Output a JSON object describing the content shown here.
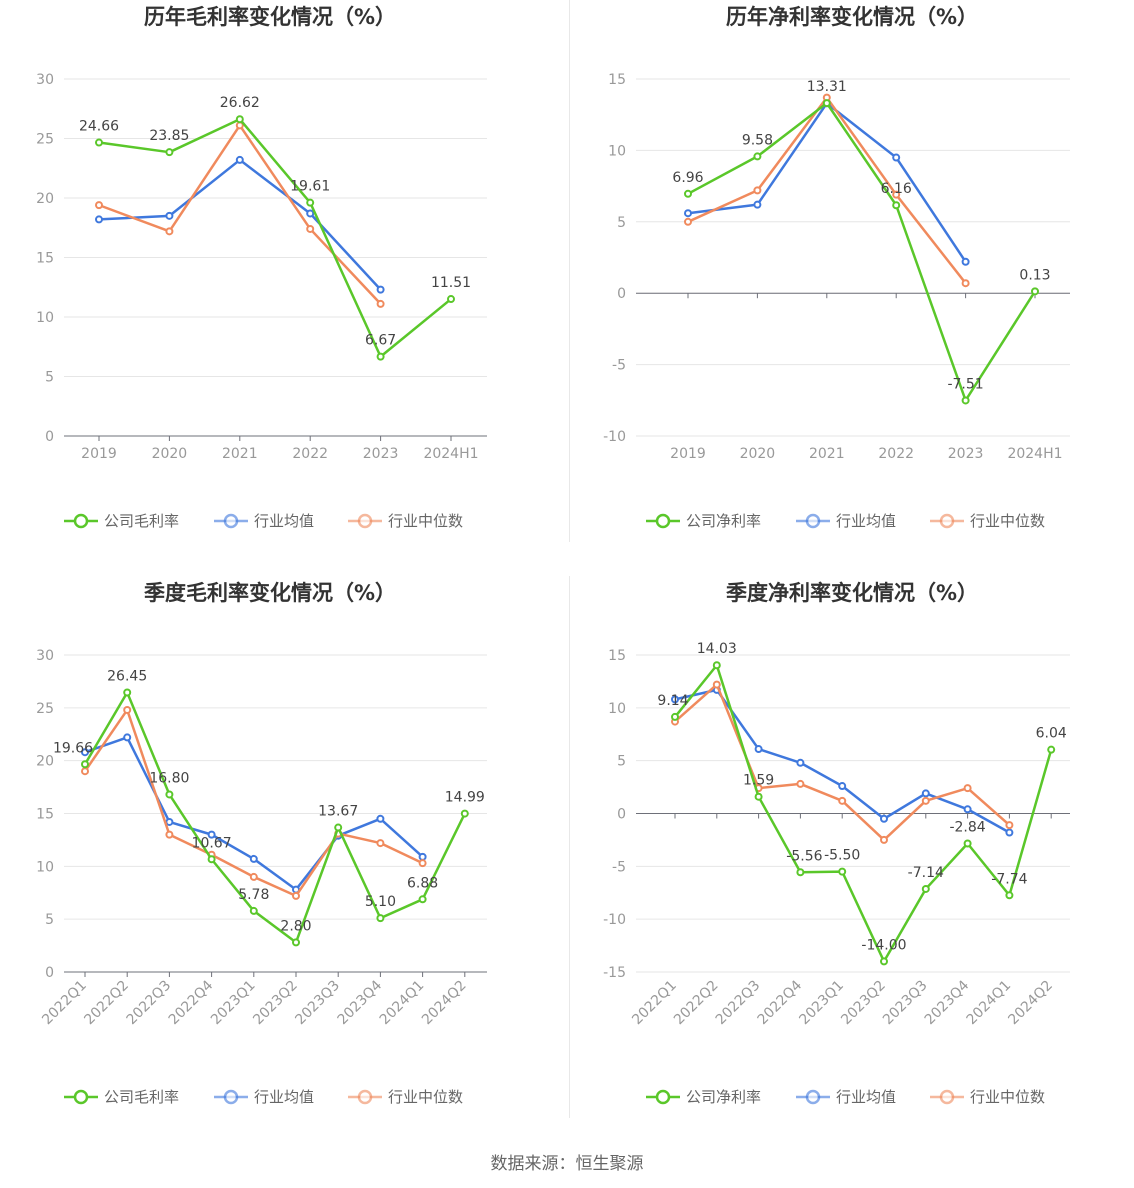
{
  "source": "数据来源：恒生聚源",
  "colors": {
    "company": "#5ac72a",
    "avg": "#3f78dd",
    "median": "#f08a5d"
  },
  "chart_data": [
    {
      "type": "line",
      "title": "历年毛利率变化情况（%）",
      "categories": [
        "2019",
        "2020",
        "2021",
        "2022",
        "2023",
        "2024H1"
      ],
      "ylim": [
        0,
        30
      ],
      "yticks": [
        0,
        5,
        10,
        15,
        20,
        25,
        30
      ],
      "grid": true,
      "legend_position": "bottom",
      "series": [
        {
          "name": "公司毛利率",
          "key": "company",
          "values": [
            24.66,
            23.85,
            26.62,
            19.61,
            6.67,
            11.51
          ],
          "labels": [
            "24.66",
            "23.85",
            "26.62",
            "19.61",
            "6.67",
            "11.51"
          ]
        },
        {
          "name": "行业均值",
          "key": "avg",
          "values": [
            18.2,
            18.5,
            23.2,
            18.7,
            12.3,
            null
          ]
        },
        {
          "name": "行业中位数",
          "key": "median",
          "values": [
            19.4,
            17.2,
            26.1,
            17.4,
            11.1,
            null
          ]
        }
      ]
    },
    {
      "type": "line",
      "title": "历年净利率变化情况（%）",
      "categories": [
        "2019",
        "2020",
        "2021",
        "2022",
        "2023",
        "2024H1"
      ],
      "ylim": [
        -10,
        15
      ],
      "yticks": [
        -10,
        -5,
        0,
        5,
        10,
        15
      ],
      "grid": true,
      "legend_position": "bottom",
      "series": [
        {
          "name": "公司净利率",
          "key": "company",
          "values": [
            6.96,
            9.58,
            13.31,
            6.16,
            -7.51,
            0.13
          ],
          "labels": [
            "6.96",
            "9.58",
            "13.31",
            "6.16",
            "-7.51",
            "0.13"
          ]
        },
        {
          "name": "行业均值",
          "key": "avg",
          "values": [
            5.6,
            6.2,
            13.3,
            9.5,
            2.2,
            null
          ]
        },
        {
          "name": "行业中位数",
          "key": "median",
          "values": [
            5.0,
            7.2,
            13.7,
            6.9,
            0.7,
            null
          ]
        }
      ]
    },
    {
      "type": "line",
      "title": "季度毛利率变化情况（%）",
      "categories": [
        "2022Q1",
        "2022Q2",
        "2022Q3",
        "2022Q4",
        "2023Q1",
        "2023Q2",
        "2023Q3",
        "2023Q4",
        "2024Q1",
        "2024Q2"
      ],
      "rotate_ticks": true,
      "ylim": [
        0,
        30
      ],
      "yticks": [
        0,
        5,
        10,
        15,
        20,
        25,
        30
      ],
      "grid": true,
      "legend_position": "bottom",
      "series": [
        {
          "name": "公司毛利率",
          "key": "company",
          "values": [
            19.66,
            26.45,
            16.8,
            10.67,
            5.78,
            2.8,
            13.67,
            5.1,
            6.88,
            14.99
          ],
          "labels": [
            "19.66",
            "26.45",
            "16.80",
            "10.67",
            "5.78",
            "2.80",
            "13.67",
            "5.10",
            "6.88",
            "14.99"
          ]
        },
        {
          "name": "行业均值",
          "key": "avg",
          "values": [
            20.8,
            22.2,
            14.2,
            13.0,
            10.7,
            7.8,
            12.9,
            14.5,
            10.9,
            null
          ]
        },
        {
          "name": "行业中位数",
          "key": "median",
          "values": [
            19.0,
            24.8,
            13.0,
            11.1,
            9.0,
            7.2,
            13.1,
            12.2,
            10.3,
            null
          ]
        }
      ]
    },
    {
      "type": "line",
      "title": "季度净利率变化情况（%）",
      "categories": [
        "2022Q1",
        "2022Q2",
        "2022Q3",
        "2022Q4",
        "2023Q1",
        "2023Q2",
        "2023Q3",
        "2023Q4",
        "2024Q1",
        "2024Q2"
      ],
      "rotate_ticks": true,
      "ylim": [
        -15,
        15
      ],
      "yticks": [
        -15,
        -10,
        -5,
        0,
        5,
        10,
        15
      ],
      "grid": true,
      "legend_position": "bottom",
      "series": [
        {
          "name": "公司净利率",
          "key": "company",
          "values": [
            9.14,
            14.03,
            1.59,
            -5.56,
            -5.5,
            -14.0,
            -7.14,
            -2.84,
            -7.74,
            6.04
          ],
          "labels": [
            "9.14",
            "14.03",
            "1.59",
            "-5.56",
            "-5.50",
            "-14.00",
            "-7.14",
            "-2.84",
            "-7.74",
            "6.04"
          ]
        },
        {
          "name": "行业均值",
          "key": "avg",
          "values": [
            10.8,
            11.7,
            6.1,
            4.8,
            2.6,
            -0.5,
            1.9,
            0.4,
            -1.8,
            null
          ]
        },
        {
          "name": "行业中位数",
          "key": "median",
          "values": [
            8.7,
            12.2,
            2.4,
            2.8,
            1.2,
            -2.5,
            1.2,
            2.4,
            -1.1,
            null
          ]
        }
      ]
    }
  ]
}
